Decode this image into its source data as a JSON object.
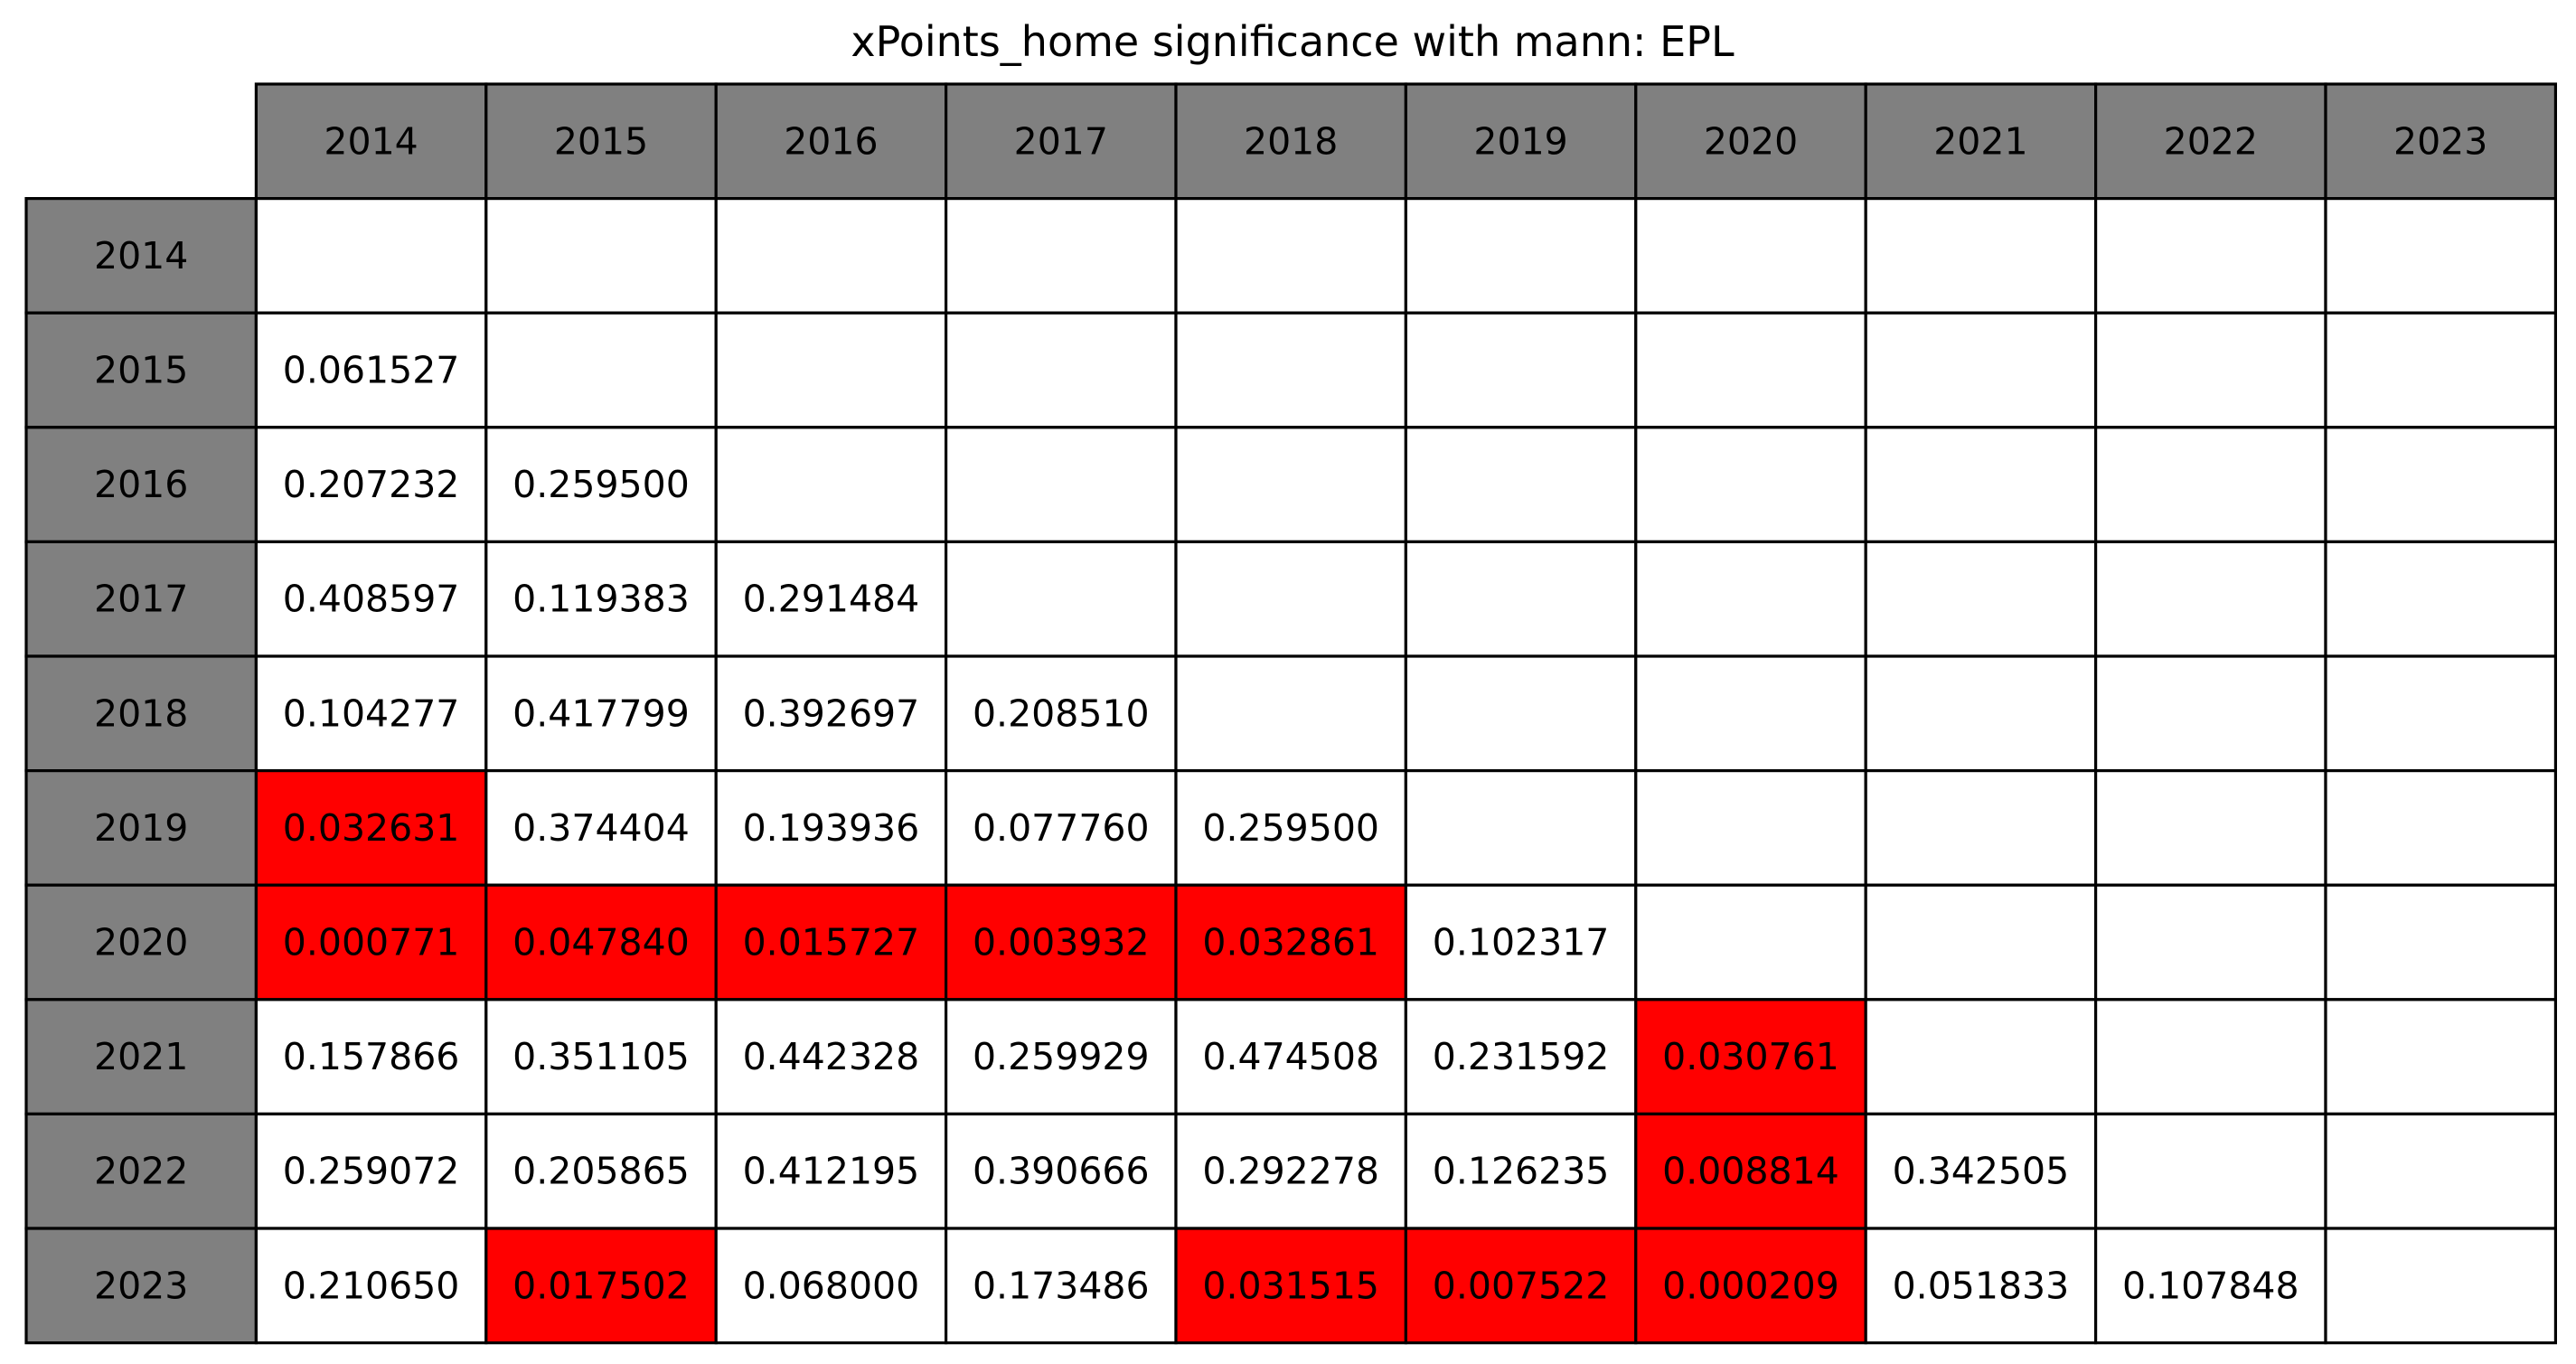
{
  "chart_data": {
    "type": "table",
    "title": "xPoints_home significance with mann: EPL",
    "column_labels": [
      "2014",
      "2015",
      "2016",
      "2017",
      "2018",
      "2019",
      "2020",
      "2021",
      "2022",
      "2023"
    ],
    "row_labels": [
      "2014",
      "2015",
      "2016",
      "2017",
      "2018",
      "2019",
      "2020",
      "2021",
      "2022",
      "2023"
    ],
    "cells": [
      [
        "",
        "",
        "",
        "",
        "",
        "",
        "",
        "",
        "",
        ""
      ],
      [
        "0.061527",
        "",
        "",
        "",
        "",
        "",
        "",
        "",
        "",
        ""
      ],
      [
        "0.207232",
        "0.259500",
        "",
        "",
        "",
        "",
        "",
        "",
        "",
        ""
      ],
      [
        "0.408597",
        "0.119383",
        "0.291484",
        "",
        "",
        "",
        "",
        "",
        "",
        ""
      ],
      [
        "0.104277",
        "0.417799",
        "0.392697",
        "0.208510",
        "",
        "",
        "",
        "",
        "",
        ""
      ],
      [
        "0.032631",
        "0.374404",
        "0.193936",
        "0.077760",
        "0.259500",
        "",
        "",
        "",
        "",
        ""
      ],
      [
        "0.000771",
        "0.047840",
        "0.015727",
        "0.003932",
        "0.032861",
        "0.102317",
        "",
        "",
        "",
        ""
      ],
      [
        "0.157866",
        "0.351105",
        "0.442328",
        "0.259929",
        "0.474508",
        "0.231592",
        "0.030761",
        "",
        "",
        ""
      ],
      [
        "0.259072",
        "0.205865",
        "0.412195",
        "0.390666",
        "0.292278",
        "0.126235",
        "0.008814",
        "0.342505",
        "",
        ""
      ],
      [
        "0.210650",
        "0.017502",
        "0.068000",
        "0.173486",
        "0.031515",
        "0.007522",
        "0.000209",
        "0.051833",
        "0.107848",
        ""
      ]
    ],
    "highlight_rule": "value < 0.05",
    "colors": {
      "header_bg": "#808080",
      "cell_bg": "#ffffff",
      "highlight_bg": "#ff0000",
      "grid": "#000000",
      "text": "#000000"
    }
  }
}
